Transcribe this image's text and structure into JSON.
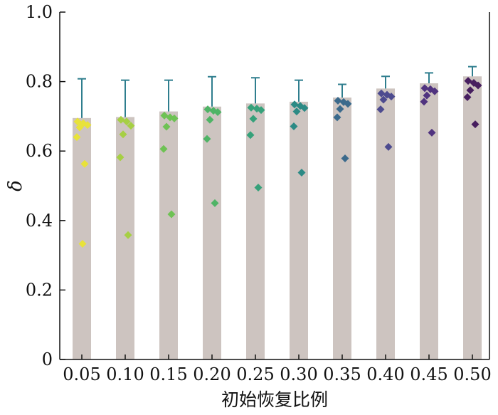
{
  "chart_data": {
    "type": "bar",
    "title": "",
    "xlabel": "初始恢复比例",
    "ylabel": "δ",
    "ylim": [
      0,
      1.0
    ],
    "yticks": [
      "0",
      "0.2",
      "0.4",
      "0.6",
      "0.8",
      "1.0"
    ],
    "categories": [
      "0.05",
      "0.10",
      "0.15",
      "0.20",
      "0.25",
      "0.30",
      "0.35",
      "0.40",
      "0.45",
      "0.50"
    ],
    "values": [
      0.695,
      0.698,
      0.714,
      0.728,
      0.737,
      0.742,
      0.754,
      0.78,
      0.795,
      0.815
    ],
    "error_upper": [
      0.808,
      0.804,
      0.804,
      0.814,
      0.811,
      0.804,
      0.792,
      0.815,
      0.825,
      0.843
    ],
    "points": [
      [
        0.685,
        0.68,
        0.675,
        0.668,
        0.64,
        0.563,
        0.333
      ],
      [
        0.69,
        0.685,
        0.673,
        0.648,
        0.582,
        0.358
      ],
      [
        0.702,
        0.697,
        0.694,
        0.67,
        0.606,
        0.418
      ],
      [
        0.72,
        0.716,
        0.712,
        0.69,
        0.635,
        0.45
      ],
      [
        0.725,
        0.722,
        0.718,
        0.693,
        0.646,
        0.495
      ],
      [
        0.734,
        0.73,
        0.724,
        0.714,
        0.671,
        0.538
      ],
      [
        0.745,
        0.741,
        0.736,
        0.721,
        0.697,
        0.579
      ],
      [
        0.766,
        0.762,
        0.757,
        0.748,
        0.72,
        0.612
      ],
      [
        0.781,
        0.778,
        0.772,
        0.76,
        0.742,
        0.653
      ],
      [
        0.802,
        0.796,
        0.789,
        0.775,
        0.755,
        0.677
      ]
    ],
    "colors": {
      "bar": "#cdc4c0",
      "error": "#2f7e8e",
      "points": [
        "#e8e23a",
        "#a6cf44",
        "#6ec254",
        "#4fb466",
        "#36a17a",
        "#2c8a85",
        "#3b6a8c",
        "#4d4b8f",
        "#50337f",
        "#471e5f"
      ]
    },
    "grid": false
  }
}
